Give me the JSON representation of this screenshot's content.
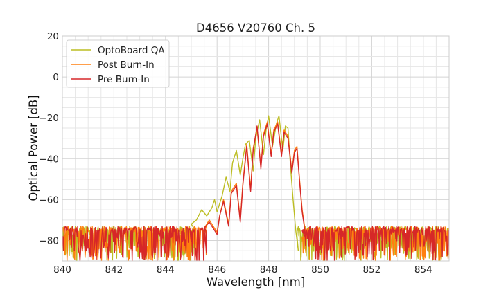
{
  "chart_data": {
    "type": "line",
    "title": "D4656 V20760 Ch. 5",
    "xlabel": "Wavelength [nm]",
    "ylabel": "Optical Power [dB]",
    "xlim": [
      840,
      855
    ],
    "ylim": [
      -90,
      20
    ],
    "xticks": [
      840,
      842,
      844,
      846,
      848,
      850,
      852,
      854
    ],
    "yticks": [
      -80,
      -60,
      -40,
      -20,
      0,
      20
    ],
    "grid": true,
    "legend_position": "top-left",
    "noise_floor": {
      "level": -75,
      "lower": -90,
      "x_range": [
        840,
        855
      ]
    },
    "series": [
      {
        "name": "OptoBoard QA",
        "color": "#bcbd22",
        "noise_x_range": [
          840,
          845.2
        ],
        "noise_x_range_right": [
          849.1,
          855
        ],
        "signal": [
          [
            845.0,
            -72
          ],
          [
            845.2,
            -70
          ],
          [
            845.4,
            -65
          ],
          [
            845.6,
            -68
          ],
          [
            845.8,
            -64
          ],
          [
            845.9,
            -60
          ],
          [
            846.0,
            -66
          ],
          [
            846.2,
            -58
          ],
          [
            846.35,
            -49
          ],
          [
            846.5,
            -56
          ],
          [
            846.6,
            -42
          ],
          [
            846.75,
            -36
          ],
          [
            846.9,
            -48
          ],
          [
            847.0,
            -40
          ],
          [
            847.1,
            -33
          ],
          [
            847.25,
            -31
          ],
          [
            847.4,
            -46
          ],
          [
            847.5,
            -30
          ],
          [
            847.65,
            -21
          ],
          [
            847.8,
            -38
          ],
          [
            847.9,
            -26
          ],
          [
            848.0,
            -19
          ],
          [
            848.15,
            -34
          ],
          [
            848.3,
            -23
          ],
          [
            848.4,
            -19
          ],
          [
            848.55,
            -36
          ],
          [
            848.65,
            -24
          ],
          [
            848.75,
            -25
          ],
          [
            848.85,
            -44
          ],
          [
            848.95,
            -60
          ],
          [
            849.05,
            -75
          ],
          [
            849.15,
            -85
          ]
        ]
      },
      {
        "name": "Post Burn-In",
        "color": "#ff7f0e",
        "noise_x_range": [
          840,
          845.6
        ],
        "noise_x_range_right": [
          849.3,
          855
        ],
        "signal": [
          [
            845.5,
            -74
          ],
          [
            845.7,
            -70
          ],
          [
            845.9,
            -74
          ],
          [
            846.0,
            -76
          ],
          [
            846.1,
            -68
          ],
          [
            846.25,
            -60
          ],
          [
            846.45,
            -72
          ],
          [
            846.55,
            -56
          ],
          [
            846.75,
            -52
          ],
          [
            846.9,
            -70
          ],
          [
            847.0,
            -52
          ],
          [
            847.15,
            -33
          ],
          [
            847.3,
            -55
          ],
          [
            847.4,
            -35
          ],
          [
            847.55,
            -25
          ],
          [
            847.7,
            -44
          ],
          [
            847.8,
            -28
          ],
          [
            847.95,
            -22
          ],
          [
            848.1,
            -38
          ],
          [
            848.2,
            -26
          ],
          [
            848.35,
            -22
          ],
          [
            848.5,
            -38
          ],
          [
            848.6,
            -26
          ],
          [
            848.75,
            -29
          ],
          [
            848.9,
            -46
          ],
          [
            849.0,
            -36
          ],
          [
            849.1,
            -34
          ],
          [
            849.2,
            -50
          ],
          [
            849.3,
            -65
          ],
          [
            849.45,
            -78
          ]
        ]
      },
      {
        "name": "Pre Burn-In",
        "color": "#d62728",
        "noise_x_range": [
          840,
          845.6
        ],
        "noise_x_range_right": [
          849.3,
          855
        ],
        "signal": [
          [
            845.5,
            -74
          ],
          [
            845.7,
            -71
          ],
          [
            845.9,
            -75
          ],
          [
            846.0,
            -77
          ],
          [
            846.1,
            -68
          ],
          [
            846.25,
            -61
          ],
          [
            846.45,
            -73
          ],
          [
            846.55,
            -57
          ],
          [
            846.75,
            -53
          ],
          [
            846.9,
            -71
          ],
          [
            847.0,
            -53
          ],
          [
            847.15,
            -34
          ],
          [
            847.3,
            -56
          ],
          [
            847.4,
            -36
          ],
          [
            847.55,
            -24
          ],
          [
            847.7,
            -45
          ],
          [
            847.8,
            -29
          ],
          [
            847.95,
            -23
          ],
          [
            848.1,
            -39
          ],
          [
            848.2,
            -27
          ],
          [
            848.35,
            -23
          ],
          [
            848.5,
            -39
          ],
          [
            848.6,
            -27
          ],
          [
            848.75,
            -30
          ],
          [
            848.9,
            -47
          ],
          [
            849.0,
            -37
          ],
          [
            849.1,
            -35
          ],
          [
            849.2,
            -51
          ],
          [
            849.3,
            -66
          ],
          [
            849.45,
            -79
          ]
        ]
      }
    ]
  }
}
